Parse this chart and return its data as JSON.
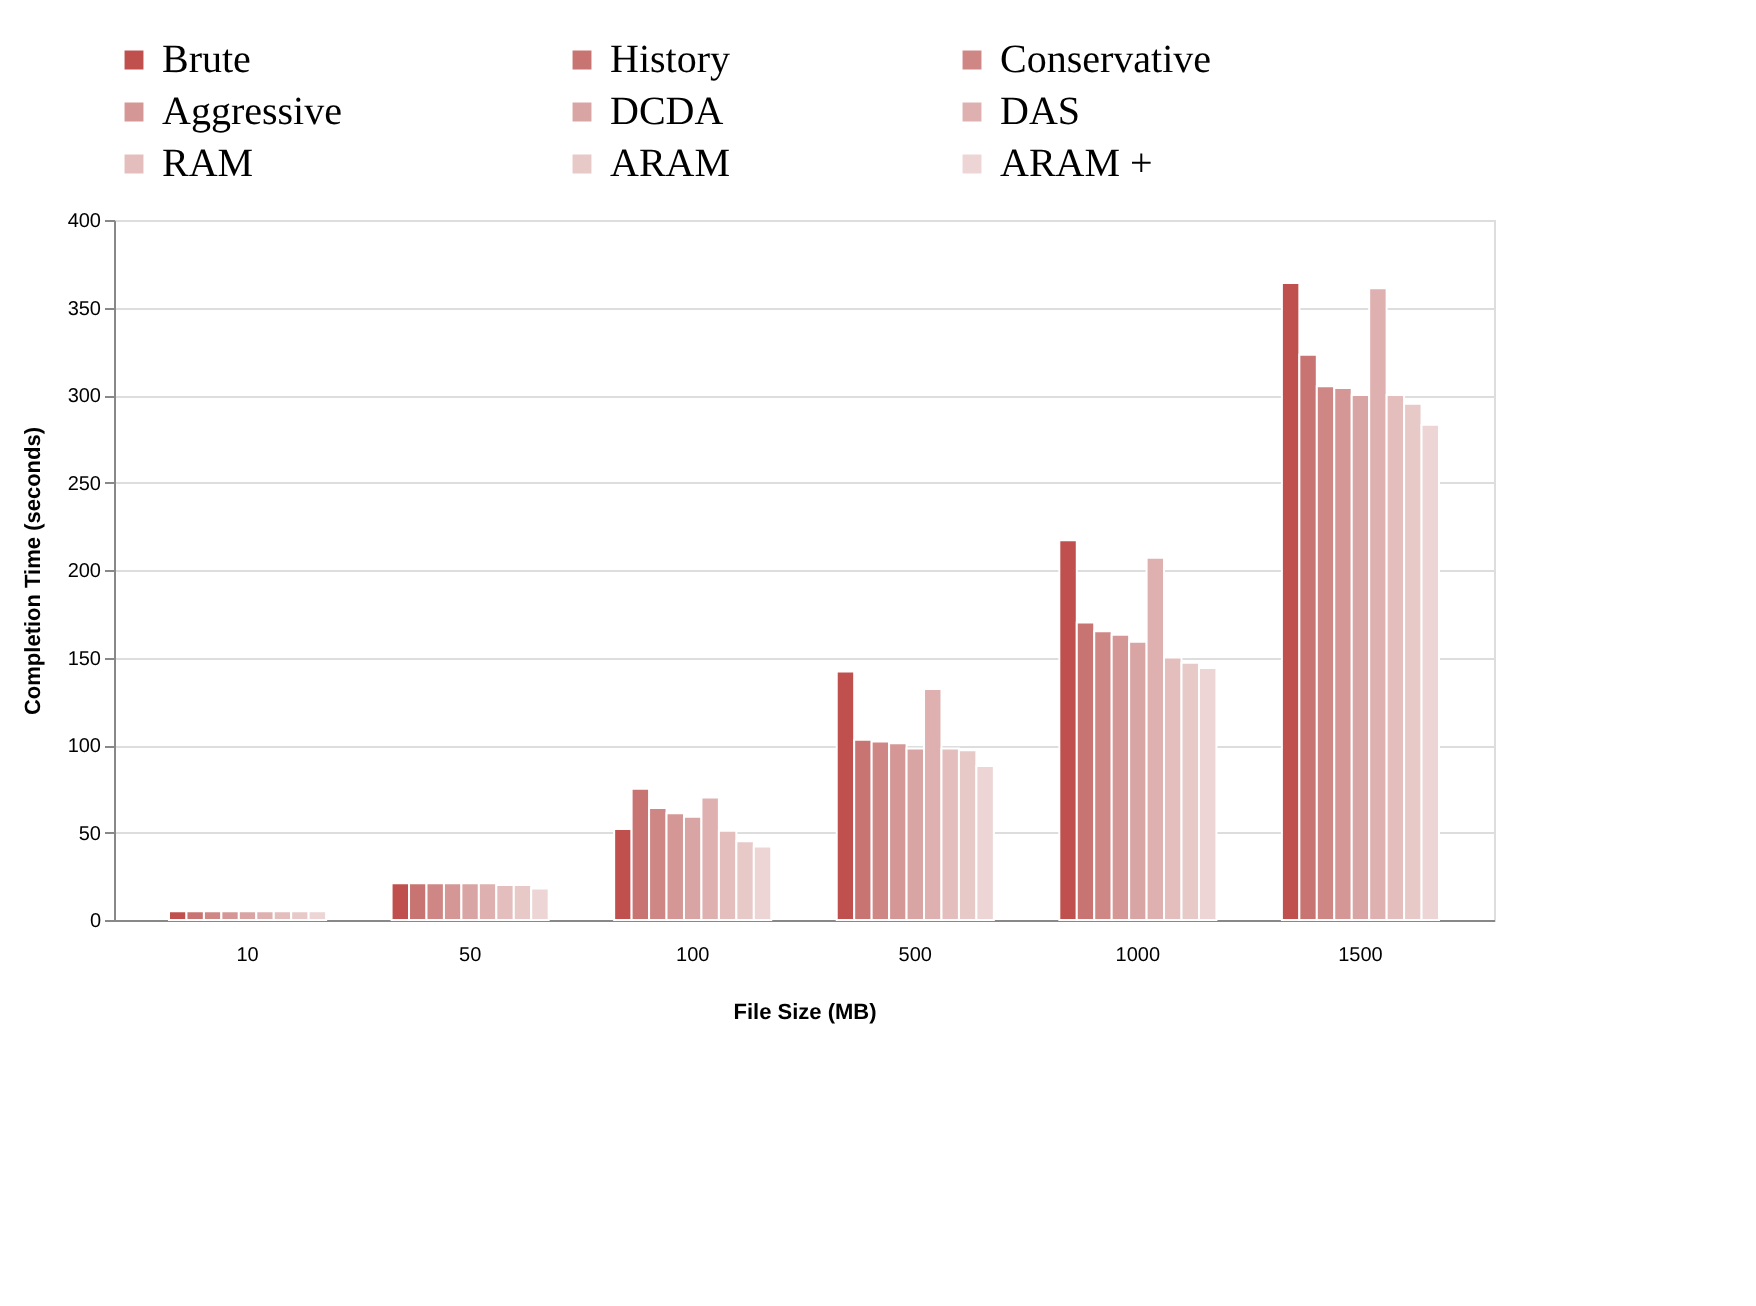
{
  "chart_data": {
    "type": "bar",
    "xlabel": "File Size (MB)",
    "ylabel": "Completion  Time (seconds)",
    "categories": [
      "10",
      "50",
      "100",
      "500",
      "1000",
      "1500"
    ],
    "series": [
      {
        "name": "Brute",
        "color": "#c0504d",
        "values": [
          5,
          21,
          52,
          142,
          217,
          364
        ]
      },
      {
        "name": "History",
        "color": "#c87472",
        "values": [
          5,
          21,
          75,
          103,
          170,
          323
        ]
      },
      {
        "name": "Conservative",
        "color": "#cf8785",
        "values": [
          5,
          21,
          64,
          102,
          165,
          305
        ]
      },
      {
        "name": "Aggressive",
        "color": "#d49795",
        "values": [
          5,
          21,
          61,
          101,
          163,
          304
        ]
      },
      {
        "name": "DCDA",
        "color": "#d9a5a4",
        "values": [
          5,
          21,
          59,
          98,
          159,
          300
        ]
      },
      {
        "name": "DAS",
        "color": "#deb1b0",
        "values": [
          5,
          21,
          70,
          132,
          207,
          361
        ]
      },
      {
        "name": "RAM",
        "color": "#e3bebd",
        "values": [
          5,
          20,
          51,
          98,
          150,
          300
        ]
      },
      {
        "name": "ARAM",
        "color": "#e7c9c8",
        "values": [
          5,
          20,
          45,
          97,
          147,
          295
        ]
      },
      {
        "name": "ARAM +",
        "color": "#ecd5d4",
        "values": [
          5,
          18,
          42,
          88,
          144,
          283
        ]
      }
    ],
    "ylim": [
      0,
      400
    ],
    "yticks": [
      0,
      50,
      100,
      150,
      200,
      250,
      300,
      350,
      400
    ],
    "grid": "y",
    "legend": "top"
  }
}
